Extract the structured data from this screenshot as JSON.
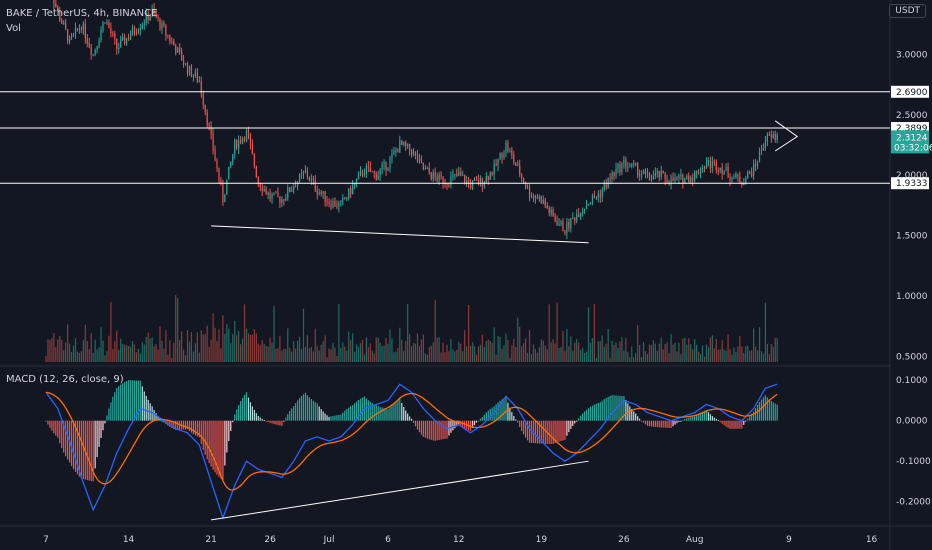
{
  "header": {
    "symbol_line": "BAKE / TetherUS, 4h, BINANCE",
    "vol_label": "Vol",
    "currency_button": "USDT"
  },
  "chart_data": {
    "type": "candlestick",
    "title": "BAKE / TetherUS, 4h, BINANCE",
    "price_axis": {
      "ticks": [
        "3.0000",
        "2.5000",
        "2.0000",
        "1.5000",
        "1.0000",
        "0.5000"
      ],
      "range": [
        0.42,
        3.45
      ]
    },
    "x_axis": {
      "ticks": [
        "7",
        "14",
        "21",
        "26",
        "Jul",
        "6",
        "12",
        "19",
        "26",
        "Aug",
        "9",
        "16"
      ]
    },
    "horizontal_levels": [
      {
        "value": 2.69,
        "label": "2.6900"
      },
      {
        "value": 2.3899,
        "label": "2.3899"
      },
      {
        "value": 1.9333,
        "label": "1.9333"
      }
    ],
    "last_price": {
      "value": 2.3124,
      "label": "2.3124",
      "countdown": "03:32:06"
    },
    "support_trendline": {
      "from": [
        "Jun 21",
        1.58
      ],
      "to": [
        "Jul 23",
        1.44
      ]
    },
    "triangle_pattern": {
      "apex_date": "Aug 8",
      "upper": 2.42,
      "lower": 2.22
    },
    "price_series": [
      [
        "Jun 7",
        3.65
      ],
      [
        "Jun 8",
        3.35
      ],
      [
        "Jun 9",
        3.1
      ],
      [
        "Jun 10",
        3.25
      ],
      [
        "Jun 11",
        3.0
      ],
      [
        "Jun 12",
        3.3
      ],
      [
        "Jun 13",
        3.05
      ],
      [
        "Jun 14",
        3.15
      ],
      [
        "Jun 15",
        3.25
      ],
      [
        "Jun 16",
        3.35
      ],
      [
        "Jun 17",
        3.2
      ],
      [
        "Jun 18",
        3.05
      ],
      [
        "Jun 19",
        2.88
      ],
      [
        "Jun 20",
        2.78
      ],
      [
        "Jun 21",
        2.3
      ],
      [
        "Jun 22",
        1.8
      ],
      [
        "Jun 23",
        2.25
      ],
      [
        "Jun 24",
        2.35
      ],
      [
        "Jun 25",
        1.95
      ],
      [
        "Jun 26",
        1.82
      ],
      [
        "Jun 27",
        1.8
      ],
      [
        "Jun 28",
        1.92
      ],
      [
        "Jun 29",
        2.02
      ],
      [
        "Jun 30",
        1.88
      ],
      [
        "Jul 1",
        1.78
      ],
      [
        "Jul 2",
        1.75
      ],
      [
        "Jul 3",
        1.9
      ],
      [
        "Jul 4",
        2.05
      ],
      [
        "Jul 5",
        2.0
      ],
      [
        "Jul 6",
        2.1
      ],
      [
        "Jul 7",
        2.25
      ],
      [
        "Jul 8",
        2.2
      ],
      [
        "Jul 9",
        2.05
      ],
      [
        "Jul 10",
        1.98
      ],
      [
        "Jul 11",
        1.95
      ],
      [
        "Jul 12",
        2.0
      ],
      [
        "Jul 13",
        1.92
      ],
      [
        "Jul 14",
        1.95
      ],
      [
        "Jul 15",
        2.05
      ],
      [
        "Jul 16",
        2.25
      ],
      [
        "Jul 17",
        2.05
      ],
      [
        "Jul 18",
        1.85
      ],
      [
        "Jul 19",
        1.8
      ],
      [
        "Jul 20",
        1.65
      ],
      [
        "Jul 21",
        1.55
      ],
      [
        "Jul 22",
        1.68
      ],
      [
        "Jul 23",
        1.78
      ],
      [
        "Jul 24",
        1.85
      ],
      [
        "Jul 25",
        2.0
      ],
      [
        "Jul 26",
        2.1
      ],
      [
        "Jul 27",
        2.05
      ],
      [
        "Jul 28",
        1.98
      ],
      [
        "Jul 29",
        2.0
      ],
      [
        "Jul 30",
        1.95
      ],
      [
        "Jul 31",
        1.97
      ],
      [
        "Aug 1",
        2.0
      ],
      [
        "Aug 2",
        2.1
      ],
      [
        "Aug 3",
        2.08
      ],
      [
        "Aug 4",
        2.0
      ],
      [
        "Aug 5",
        1.95
      ],
      [
        "Aug 6",
        2.05
      ],
      [
        "Aug 7",
        2.3
      ],
      [
        "Aug 8",
        2.32
      ]
    ],
    "volume_axis": {
      "ticks": [
        "1.0000",
        "0.5000"
      ]
    },
    "macd": {
      "label": "MACD (12, 26, close, 9)",
      "axis_ticks": [
        "0.1000",
        "0.0000",
        "-0.1000",
        "-0.2000"
      ],
      "range": [
        -0.26,
        0.135
      ],
      "trendline": {
        "from": [
          "Jun 21",
          -0.245
        ],
        "to": [
          "Jul 23",
          -0.1
        ]
      },
      "macd_series": [
        [
          "Jun 7",
          0.07
        ],
        [
          "Jun 8",
          0.03
        ],
        [
          "Jun 9",
          -0.05
        ],
        [
          "Jun 10",
          -0.14
        ],
        [
          "Jun 11",
          -0.22
        ],
        [
          "Jun 12",
          -0.16
        ],
        [
          "Jun 13",
          -0.08
        ],
        [
          "Jun 14",
          -0.02
        ],
        [
          "Jun 15",
          0.03
        ],
        [
          "Jun 16",
          0.02
        ],
        [
          "Jun 17",
          0.0
        ],
        [
          "Jun 18",
          -0.02
        ],
        [
          "Jun 19",
          -0.03
        ],
        [
          "Jun 20",
          -0.06
        ],
        [
          "Jun 21",
          -0.15
        ],
        [
          "Jun 22",
          -0.24
        ],
        [
          "Jun 23",
          -0.16
        ],
        [
          "Jun 24",
          -0.1
        ],
        [
          "Jun 25",
          -0.12
        ],
        [
          "Jun 26",
          -0.13
        ],
        [
          "Jun 27",
          -0.14
        ],
        [
          "Jun 28",
          -0.1
        ],
        [
          "Jun 29",
          -0.05
        ],
        [
          "Jun 30",
          -0.04
        ],
        [
          "Jul 1",
          -0.05
        ],
        [
          "Jul 2",
          -0.04
        ],
        [
          "Jul 3",
          -0.01
        ],
        [
          "Jul 4",
          0.03
        ],
        [
          "Jul 5",
          0.04
        ],
        [
          "Jul 6",
          0.05
        ],
        [
          "Jul 7",
          0.09
        ],
        [
          "Jul 8",
          0.07
        ],
        [
          "Jul 9",
          0.03
        ],
        [
          "Jul 10",
          0.0
        ],
        [
          "Jul 11",
          -0.02
        ],
        [
          "Jul 12",
          -0.01
        ],
        [
          "Jul 13",
          -0.03
        ],
        [
          "Jul 14",
          -0.01
        ],
        [
          "Jul 15",
          0.02
        ],
        [
          "Jul 16",
          0.06
        ],
        [
          "Jul 17",
          0.03
        ],
        [
          "Jul 18",
          -0.02
        ],
        [
          "Jul 19",
          -0.05
        ],
        [
          "Jul 20",
          -0.08
        ],
        [
          "Jul 21",
          -0.1
        ],
        [
          "Jul 22",
          -0.08
        ],
        [
          "Jul 23",
          -0.05
        ],
        [
          "Jul 24",
          -0.02
        ],
        [
          "Jul 25",
          0.02
        ],
        [
          "Jul 26",
          0.05
        ],
        [
          "Jul 27",
          0.04
        ],
        [
          "Jul 28",
          0.02
        ],
        [
          "Jul 29",
          0.01
        ],
        [
          "Jul 30",
          0.0
        ],
        [
          "Jul 31",
          0.01
        ],
        [
          "Aug 1",
          0.02
        ],
        [
          "Aug 2",
          0.04
        ],
        [
          "Aug 3",
          0.03
        ],
        [
          "Aug 4",
          0.01
        ],
        [
          "Aug 5",
          0.0
        ],
        [
          "Aug 6",
          0.03
        ],
        [
          "Aug 7",
          0.08
        ],
        [
          "Aug 8",
          0.09
        ]
      ]
    }
  },
  "colors": {
    "background": "#131722",
    "up": "#26a69a",
    "down": "#ef5350",
    "vol_up": "#1f6b63",
    "vol_down": "#8b3a3a",
    "macd_line": "#2962ff",
    "signal_line": "#ff6d00",
    "level_line": "#ffffff",
    "axis_text": "#d1d4dc",
    "last_price_tag": "#26a69a"
  }
}
